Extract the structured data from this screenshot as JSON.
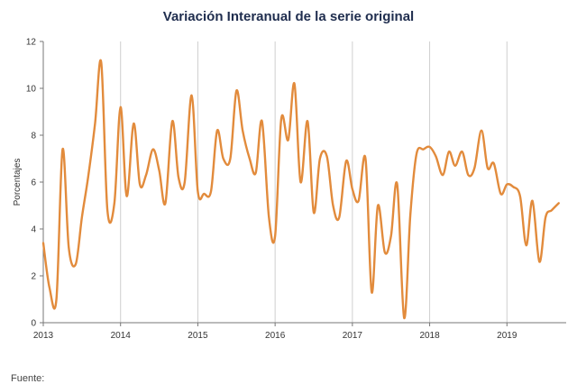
{
  "page": {
    "footer_text": "Fuente:"
  },
  "colors": {
    "line": "#e28b3c",
    "grid": "#cfcfcf",
    "title": "#1f2d4e"
  },
  "chart_data": {
    "type": "line",
    "title": "Variación Interanual de la serie original",
    "xlabel": "",
    "ylabel": "Porcentajes",
    "ylim": [
      0,
      12
    ],
    "xlim": [
      2013.0,
      2019.72
    ],
    "yticks": [
      0,
      2,
      4,
      6,
      8,
      10,
      12
    ],
    "xticks": [
      "2013",
      "2014",
      "2015",
      "2016",
      "2017",
      "2018",
      "2019"
    ],
    "grid": {
      "horizontal": false,
      "vertical": true
    },
    "series": [
      {
        "values": [
          [
            2013.0,
            3.4
          ],
          [
            2013.08,
            1.5
          ],
          [
            2013.17,
            1.0
          ],
          [
            2013.25,
            7.4
          ],
          [
            2013.33,
            3.2
          ],
          [
            2013.42,
            2.5
          ],
          [
            2013.5,
            4.5
          ],
          [
            2013.58,
            6.2
          ],
          [
            2013.67,
            8.5
          ],
          [
            2013.75,
            11.1
          ],
          [
            2013.83,
            4.8
          ],
          [
            2013.92,
            5.1
          ],
          [
            2014.0,
            9.2
          ],
          [
            2014.08,
            5.4
          ],
          [
            2014.17,
            8.5
          ],
          [
            2014.25,
            5.9
          ],
          [
            2014.33,
            6.3
          ],
          [
            2014.42,
            7.4
          ],
          [
            2014.5,
            6.5
          ],
          [
            2014.58,
            5.1
          ],
          [
            2014.67,
            8.6
          ],
          [
            2014.75,
            6.2
          ],
          [
            2014.83,
            6.0
          ],
          [
            2014.92,
            9.7
          ],
          [
            2015.0,
            5.6
          ],
          [
            2015.08,
            5.5
          ],
          [
            2015.17,
            5.6
          ],
          [
            2015.25,
            8.2
          ],
          [
            2015.33,
            7.0
          ],
          [
            2015.42,
            7.0
          ],
          [
            2015.5,
            9.9
          ],
          [
            2015.58,
            8.2
          ],
          [
            2015.67,
            7.0
          ],
          [
            2015.75,
            6.4
          ],
          [
            2015.83,
            8.6
          ],
          [
            2015.92,
            4.5
          ],
          [
            2016.0,
            3.7
          ],
          [
            2016.08,
            8.7
          ],
          [
            2016.17,
            7.8
          ],
          [
            2016.25,
            10.2
          ],
          [
            2016.33,
            6.0
          ],
          [
            2016.42,
            8.6
          ],
          [
            2016.5,
            4.7
          ],
          [
            2016.58,
            7.0
          ],
          [
            2016.67,
            7.1
          ],
          [
            2016.75,
            5.0
          ],
          [
            2016.83,
            4.5
          ],
          [
            2016.92,
            6.9
          ],
          [
            2017.0,
            5.7
          ],
          [
            2017.08,
            5.2
          ],
          [
            2017.17,
            7.0
          ],
          [
            2017.25,
            1.3
          ],
          [
            2017.33,
            5.0
          ],
          [
            2017.42,
            3.0
          ],
          [
            2017.5,
            3.7
          ],
          [
            2017.58,
            5.9
          ],
          [
            2017.67,
            0.2
          ],
          [
            2017.75,
            4.6
          ],
          [
            2017.83,
            7.2
          ],
          [
            2017.92,
            7.4
          ],
          [
            2018.0,
            7.5
          ],
          [
            2018.08,
            7.1
          ],
          [
            2018.17,
            6.3
          ],
          [
            2018.25,
            7.3
          ],
          [
            2018.33,
            6.7
          ],
          [
            2018.42,
            7.3
          ],
          [
            2018.5,
            6.3
          ],
          [
            2018.58,
            6.6
          ],
          [
            2018.67,
            8.2
          ],
          [
            2018.75,
            6.6
          ],
          [
            2018.83,
            6.8
          ],
          [
            2018.92,
            5.5
          ],
          [
            2019.0,
            5.9
          ],
          [
            2019.08,
            5.8
          ],
          [
            2019.17,
            5.4
          ],
          [
            2019.25,
            3.3
          ],
          [
            2019.33,
            5.2
          ],
          [
            2019.42,
            2.6
          ],
          [
            2019.5,
            4.5
          ],
          [
            2019.58,
            4.8
          ],
          [
            2019.67,
            5.1
          ]
        ]
      }
    ]
  }
}
